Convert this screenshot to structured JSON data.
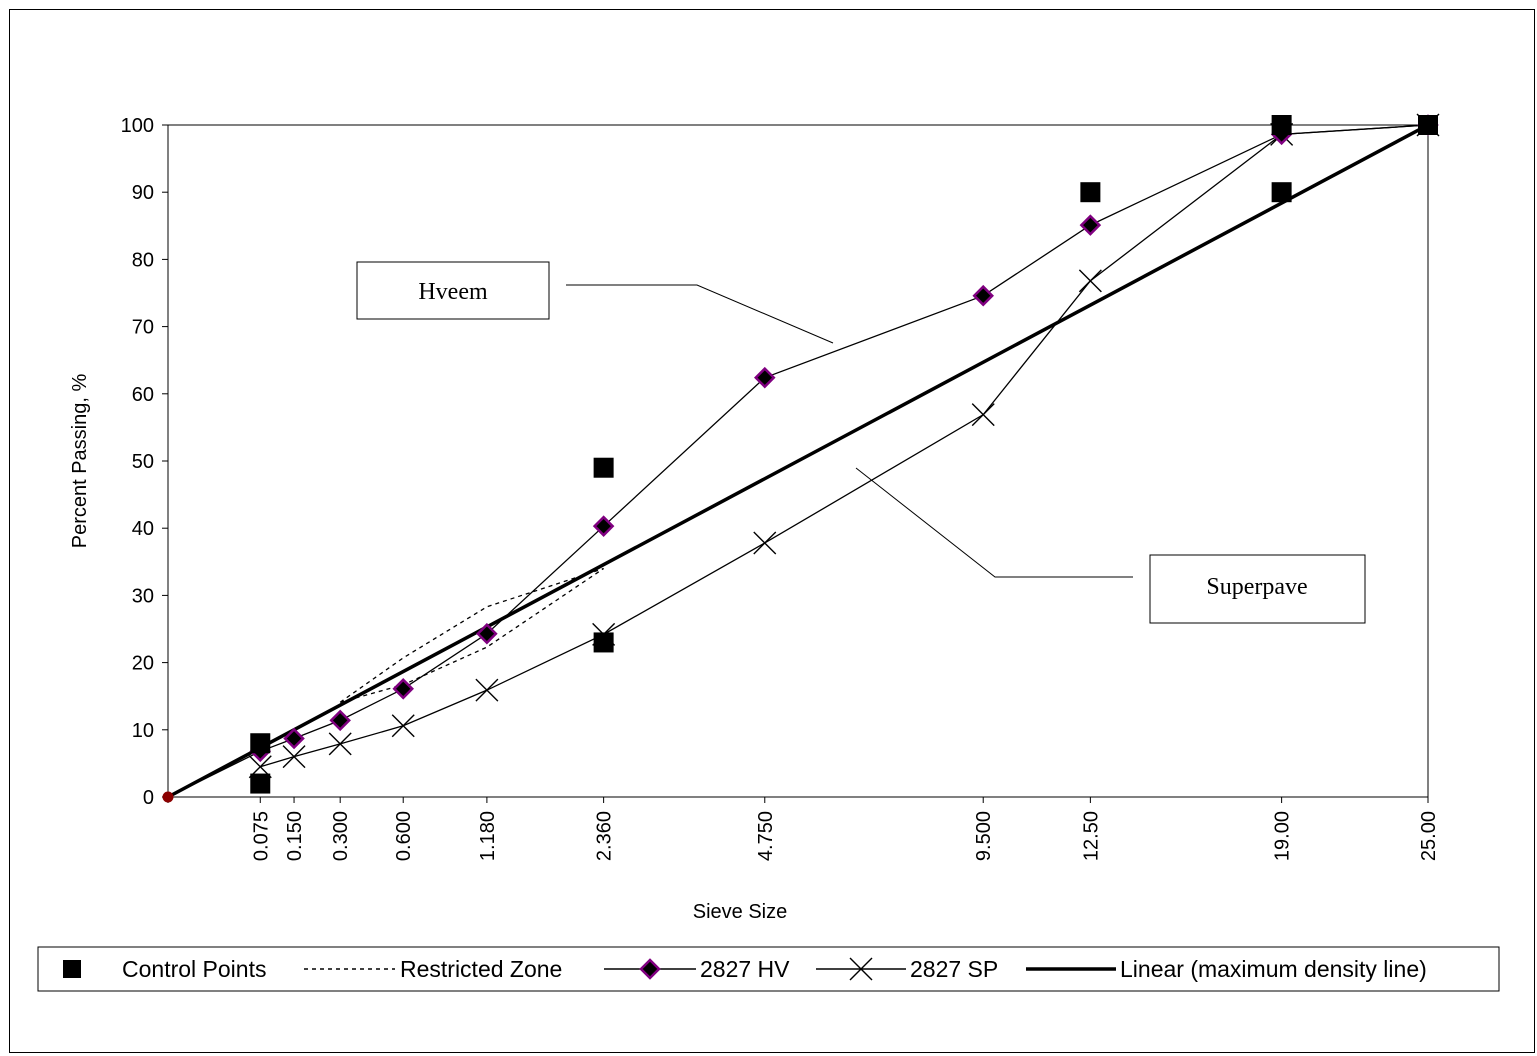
{
  "chart_data": {
    "type": "line",
    "title": "",
    "xlabel": "Sieve Size",
    "ylabel": "Percent Passing, %",
    "ylim": [
      0,
      100
    ],
    "y_ticks": [
      "0",
      "10",
      "20",
      "30",
      "40",
      "50",
      "60",
      "70",
      "80",
      "90",
      "100"
    ],
    "x_axis_scale": "sieve size raised to 0.45 power",
    "x_tick_labels": [
      "0.075",
      "0.150",
      "0.300",
      "0.600",
      "1.180",
      "2.360",
      "4.750",
      "9.500",
      "12.50",
      "19.00",
      "25.00"
    ],
    "x_tick_values": [
      0.075,
      0.15,
      0.3,
      0.6,
      1.18,
      2.36,
      4.75,
      9.5,
      12.5,
      19.0,
      25.0
    ],
    "grid": false,
    "legend_position": "bottom",
    "series": [
      {
        "name": "Control Points",
        "style": "markers-square",
        "color": "#000000",
        "points": [
          {
            "x": 0.075,
            "y": 2
          },
          {
            "x": 0.075,
            "y": 8
          },
          {
            "x": 2.36,
            "y": 23
          },
          {
            "x": 2.36,
            "y": 49
          },
          {
            "x": 12.5,
            "y": 90
          },
          {
            "x": 19.0,
            "y": 90
          },
          {
            "x": 19.0,
            "y": 100
          },
          {
            "x": 25.0,
            "y": 100
          }
        ]
      },
      {
        "name": "Restricted Zone",
        "style": "dotted-line",
        "color": "#000000",
        "lines": [
          [
            {
              "x": 0.3,
              "y": 14.1
            },
            {
              "x": 0.6,
              "y": 20.7
            },
            {
              "x": 1.18,
              "y": 28.3
            },
            {
              "x": 2.36,
              "y": 34.0
            }
          ],
          [
            {
              "x": 0.3,
              "y": 14.1
            },
            {
              "x": 0.6,
              "y": 16.7
            },
            {
              "x": 1.18,
              "y": 22.3
            },
            {
              "x": 2.36,
              "y": 34.0
            }
          ]
        ]
      },
      {
        "name": "2827 HV",
        "style": "line-diamond",
        "color": "#000000",
        "marker_fill": "#000000",
        "marker_edge": "#800080",
        "points": [
          {
            "x": 0,
            "y": 0
          },
          {
            "x": 0.075,
            "y": 6.8
          },
          {
            "x": 0.15,
            "y": 8.7
          },
          {
            "x": 0.3,
            "y": 11.4
          },
          {
            "x": 0.6,
            "y": 16.1
          },
          {
            "x": 1.18,
            "y": 24.3
          },
          {
            "x": 2.36,
            "y": 40.3
          },
          {
            "x": 4.75,
            "y": 62.4
          },
          {
            "x": 9.5,
            "y": 74.6
          },
          {
            "x": 12.5,
            "y": 85.1
          },
          {
            "x": 19.0,
            "y": 98.6
          },
          {
            "x": 25.0,
            "y": 100
          }
        ]
      },
      {
        "name": "2827 SP",
        "style": "line-x",
        "color": "#000000",
        "points": [
          {
            "x": 0.075,
            "y": 4.5
          },
          {
            "x": 0.15,
            "y": 6.0
          },
          {
            "x": 0.3,
            "y": 7.9
          },
          {
            "x": 0.6,
            "y": 10.6
          },
          {
            "x": 1.18,
            "y": 15.9
          },
          {
            "x": 2.36,
            "y": 24.2
          },
          {
            "x": 4.75,
            "y": 37.8
          },
          {
            "x": 9.5,
            "y": 56.9
          },
          {
            "x": 12.5,
            "y": 76.8
          },
          {
            "x": 19.0,
            "y": 98.6
          },
          {
            "x": 25.0,
            "y": 100
          }
        ]
      },
      {
        "name": "Linear (maximum density line)",
        "style": "thick-line",
        "color": "#000000",
        "points": [
          {
            "x": 0,
            "y": 0
          },
          {
            "x": 25.0,
            "y": 100
          }
        ]
      }
    ],
    "annotations": [
      {
        "text": "Hveem",
        "points_to": "2827 HV"
      },
      {
        "text": "Superpave",
        "points_to": "2827 SP"
      }
    ]
  }
}
